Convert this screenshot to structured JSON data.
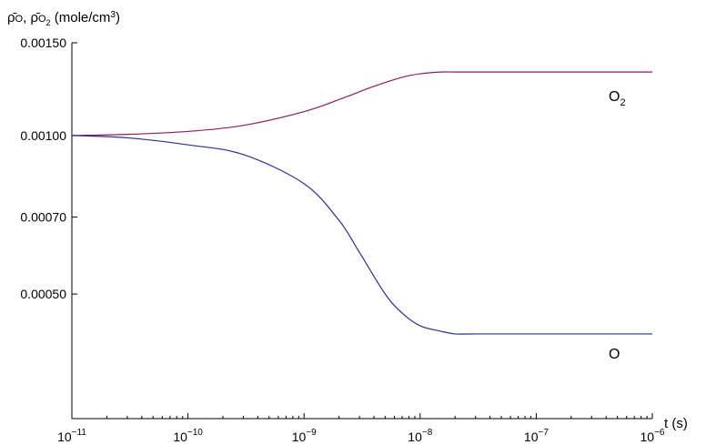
{
  "chart_data": {
    "type": "line",
    "title": "",
    "xlabel": "t (s)",
    "ylabel": "ρ̄O, ρ̄O2 (mole/cm3)",
    "x_scale": "log",
    "y_scale": "log",
    "xlim": [
      1e-11,
      1e-06
    ],
    "ylim": [
      0.00029,
      0.0015
    ],
    "xticks": [
      {
        "value": 1e-11,
        "base": "10",
        "exp": "−11"
      },
      {
        "value": 1e-10,
        "base": "10",
        "exp": "−10"
      },
      {
        "value": 1e-09,
        "base": "10",
        "exp": "−9"
      },
      {
        "value": 1e-08,
        "base": "10",
        "exp": "−8"
      },
      {
        "value": 1e-07,
        "base": "10",
        "exp": "−7"
      },
      {
        "value": 1e-06,
        "base": "10",
        "exp": "−6"
      }
    ],
    "yticks": [
      {
        "value": 0.0015,
        "label": "0.00150"
      },
      {
        "value": 0.001,
        "label": "0.00100"
      },
      {
        "value": 0.0007,
        "label": "0.00070"
      },
      {
        "value": 0.0005,
        "label": "0.00050"
      }
    ],
    "grid": false,
    "series": [
      {
        "name": "O2",
        "color": "#8b1f5a",
        "x": [
          1e-11,
          3e-11,
          1e-10,
          3e-10,
          1e-09,
          2e-09,
          4e-09,
          7e-09,
          1e-08,
          1.5e-08,
          2e-08,
          3e-08,
          5e-08,
          1e-07,
          3e-07,
          1e-06
        ],
        "y": [
          0.001,
          0.001005,
          0.001018,
          0.001045,
          0.00111,
          0.00117,
          0.00124,
          0.00129,
          0.00131,
          0.00132,
          0.00132,
          0.00132,
          0.00132,
          0.00132,
          0.00132,
          0.00132
        ]
      },
      {
        "name": "O",
        "color": "#2e2f8f",
        "x": [
          1e-11,
          3e-11,
          1e-10,
          3e-10,
          1e-09,
          2e-09,
          3e-09,
          5e-09,
          7e-09,
          1e-08,
          1.5e-08,
          2e-08,
          3e-08,
          5e-08,
          1e-07,
          3e-07,
          1e-06
        ],
        "y": [
          0.001,
          0.00099,
          0.00096,
          0.00092,
          0.00081,
          0.00069,
          0.0006,
          0.0005,
          0.00046,
          0.000435,
          0.000425,
          0.00042,
          0.00042,
          0.00042,
          0.00042,
          0.00042,
          0.00042
        ]
      }
    ],
    "annotations": [
      {
        "text": "O",
        "sub": "2",
        "series": "O2"
      },
      {
        "text": "O",
        "sub": "",
        "series": "O"
      }
    ]
  }
}
